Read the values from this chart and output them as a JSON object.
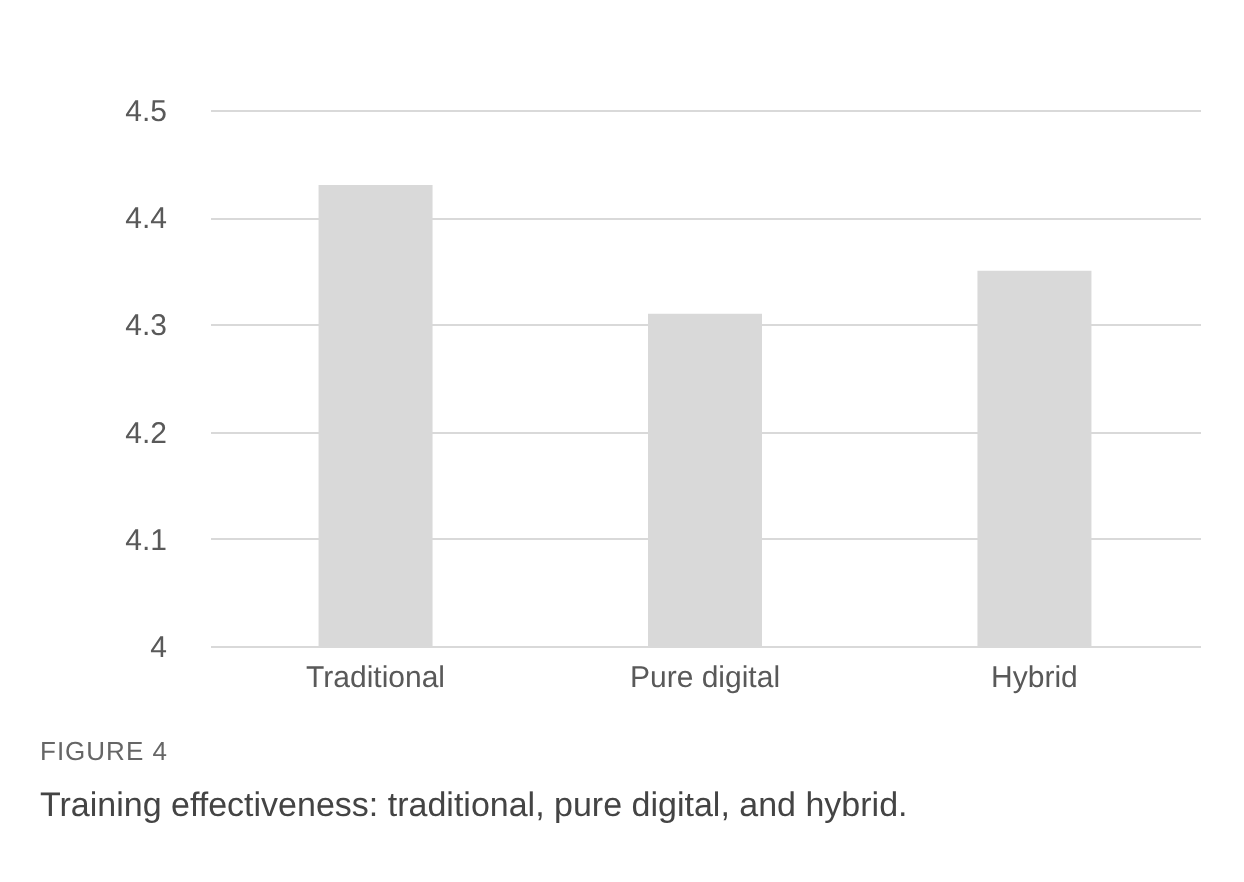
{
  "chart_data": {
    "type": "bar",
    "categories": [
      "Traditional",
      "Pure digital",
      "Hybrid"
    ],
    "values": [
      4.43,
      4.31,
      4.35
    ],
    "color": "#d9d9d9",
    "ylim": [
      4,
      4.5
    ],
    "yticks": [
      {
        "value": 4,
        "label": "4"
      },
      4.1,
      4.2,
      4.3,
      4.4,
      4.5
    ],
    "grid": "y",
    "annotations": [
      "FIGURE 4",
      "Training effectiveness: traditional, pure digital, and hybrid."
    ]
  }
}
